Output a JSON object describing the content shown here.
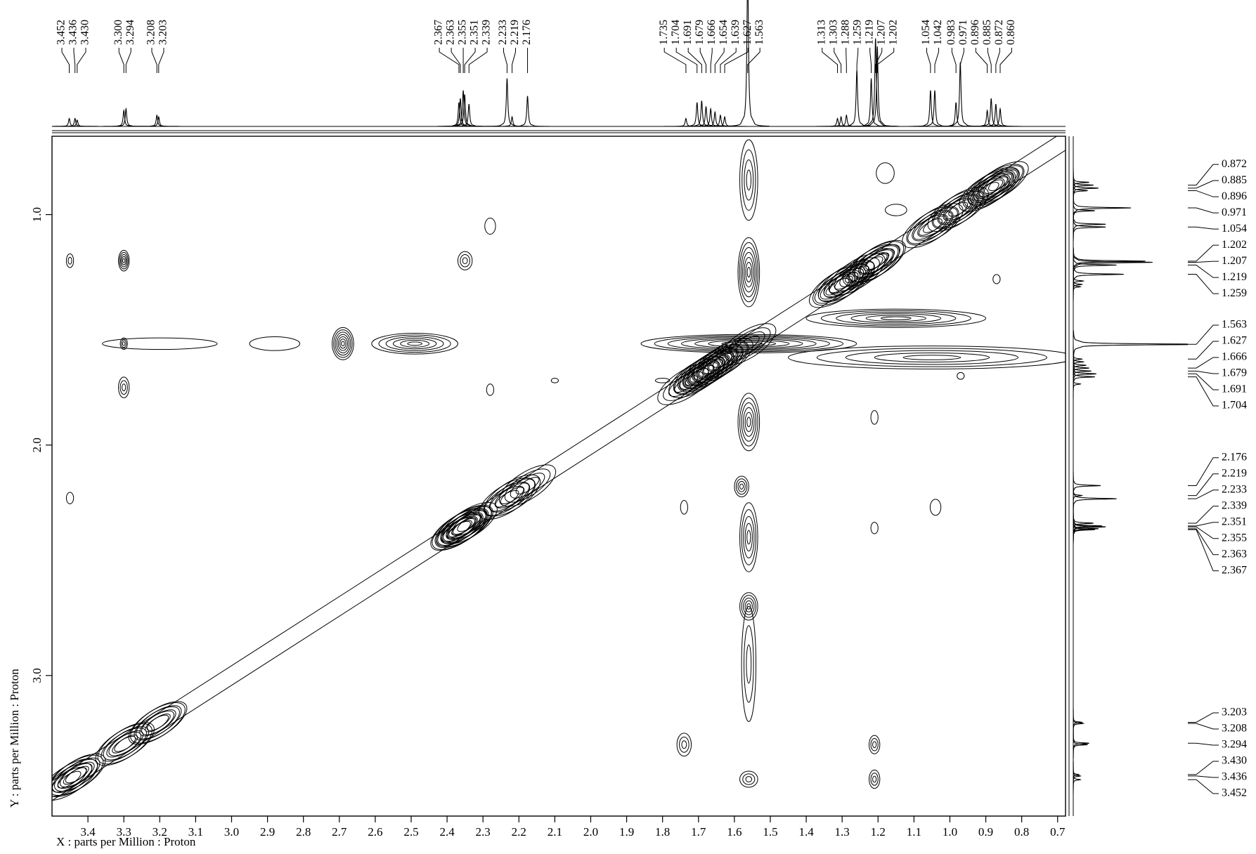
{
  "chart_data": {
    "type": "contour",
    "x_label": "X : parts per Million : Proton",
    "y_label": "Y : parts per Million : Proton",
    "color": "#000000",
    "xlim": [
      3.5,
      0.678
    ],
    "ylim": [
      0.66,
      3.61
    ],
    "xticks": [
      3.4,
      3.3,
      3.2,
      3.1,
      {
        "value": 3,
        "label": "3.0"
      },
      2.9,
      2.8,
      2.7,
      2.6,
      2.5,
      2.4,
      2.3,
      2.2,
      2.1,
      {
        "value": 2,
        "label": "2.0"
      },
      1.9,
      1.8,
      1.7,
      1.6,
      1.5,
      1.4,
      1.3,
      1.2,
      1.1,
      {
        "value": 1,
        "label": "1.0"
      },
      0.9,
      0.8,
      0.7
    ],
    "yticks": [
      {
        "value": 1,
        "label": "1.0"
      },
      {
        "value": 2,
        "label": "2.0"
      },
      {
        "value": 3,
        "label": "3.0"
      }
    ],
    "top_peaks": [
      3.452,
      3.436,
      {
        "value": 3.43,
        "label": "3.430"
      },
      {
        "value": 3.3,
        "label": "3.300"
      },
      3.294,
      3.208,
      3.203,
      2.367,
      2.363,
      2.355,
      2.351,
      2.339,
      2.233,
      2.219,
      2.176,
      1.735,
      1.704,
      1.691,
      1.679,
      1.666,
      1.654,
      1.639,
      1.627,
      1.563,
      1.313,
      1.303,
      1.288,
      1.259,
      1.219,
      1.207,
      1.202,
      1.054,
      1.042,
      0.983,
      0.971,
      0.896,
      0.885,
      0.872,
      {
        "value": 0.86,
        "label": "0.860"
      }
    ],
    "top_intensity": [
      10,
      10,
      8,
      20,
      22,
      14,
      12,
      30,
      35,
      45,
      40,
      28,
      60,
      12,
      38,
      10,
      30,
      32,
      25,
      22,
      18,
      14,
      12,
      200,
      10,
      12,
      14,
      70,
      60,
      110,
      100,
      45,
      45,
      30,
      80,
      20,
      35,
      28,
      22
    ],
    "right_peaks": [
      0.872,
      0.885,
      0.896,
      0.971,
      1.054,
      1.202,
      1.207,
      1.219,
      1.259,
      1.563,
      1.627,
      1.666,
      1.679,
      1.691,
      1.704,
      2.176,
      2.219,
      2.233,
      2.339,
      2.351,
      2.355,
      2.363,
      2.367,
      3.203,
      3.208,
      3.294,
      {
        "value": 3.43,
        "label": "3.430"
      },
      3.436,
      3.452
    ],
    "cross_peaks": {
      "x": [
        3.45,
        3.3,
        3.3,
        3.3,
        3.45,
        2.69,
        2.49,
        2.88,
        3.2,
        2.35,
        2.28,
        2.28,
        1.74,
        1.21,
        1.21,
        1.56,
        1.74,
        1.04,
        1.21,
        1.21,
        1.58,
        1.56,
        1.56,
        1.56,
        1.56,
        1.56,
        1.56,
        1.18,
        1.15,
        0.87,
        1.56,
        1.15,
        1.05,
        0.97,
        1.8,
        2.1
      ],
      "y": [
        1.2,
        1.2,
        1.56,
        1.75,
        2.23,
        1.56,
        1.56,
        1.56,
        1.56,
        1.2,
        1.05,
        1.76,
        3.3,
        3.3,
        3.45,
        3.45,
        2.27,
        2.27,
        2.36,
        1.88,
        2.18,
        2.7,
        2.4,
        2.95,
        1.9,
        1.25,
        0.85,
        0.82,
        0.98,
        1.28,
        1.56,
        1.45,
        1.62,
        1.7,
        1.72,
        1.72
      ],
      "width": [
        0.02,
        0.03,
        0.02,
        0.03,
        0.02,
        0.06,
        0.24,
        0.14,
        0.32,
        0.04,
        0.03,
        0.02,
        0.04,
        0.03,
        0.03,
        0.05,
        0.02,
        0.03,
        0.02,
        0.02,
        0.04,
        0.05,
        0.05,
        0.04,
        0.06,
        0.06,
        0.05,
        0.05,
        0.06,
        0.02,
        0.6,
        0.5,
        0.8,
        0.02,
        0.04,
        0.02
      ],
      "height": [
        0.06,
        0.09,
        0.05,
        0.09,
        0.05,
        0.14,
        0.09,
        0.06,
        0.05,
        0.08,
        0.07,
        0.05,
        0.1,
        0.08,
        0.08,
        0.07,
        0.06,
        0.07,
        0.05,
        0.06,
        0.09,
        0.12,
        0.3,
        0.5,
        0.25,
        0.3,
        0.35,
        0.09,
        0.05,
        0.04,
        0.08,
        0.08,
        0.1,
        0.03,
        0.02,
        0.02
      ],
      "levels": [
        2,
        5,
        3,
        3,
        1,
        7,
        6,
        1,
        1,
        3,
        1,
        1,
        3,
        3,
        3,
        3,
        1,
        1,
        1,
        1,
        4,
        5,
        5,
        3,
        6,
        7,
        4,
        1,
        1,
        1,
        8,
        6,
        5,
        1,
        1,
        1
      ]
    }
  }
}
